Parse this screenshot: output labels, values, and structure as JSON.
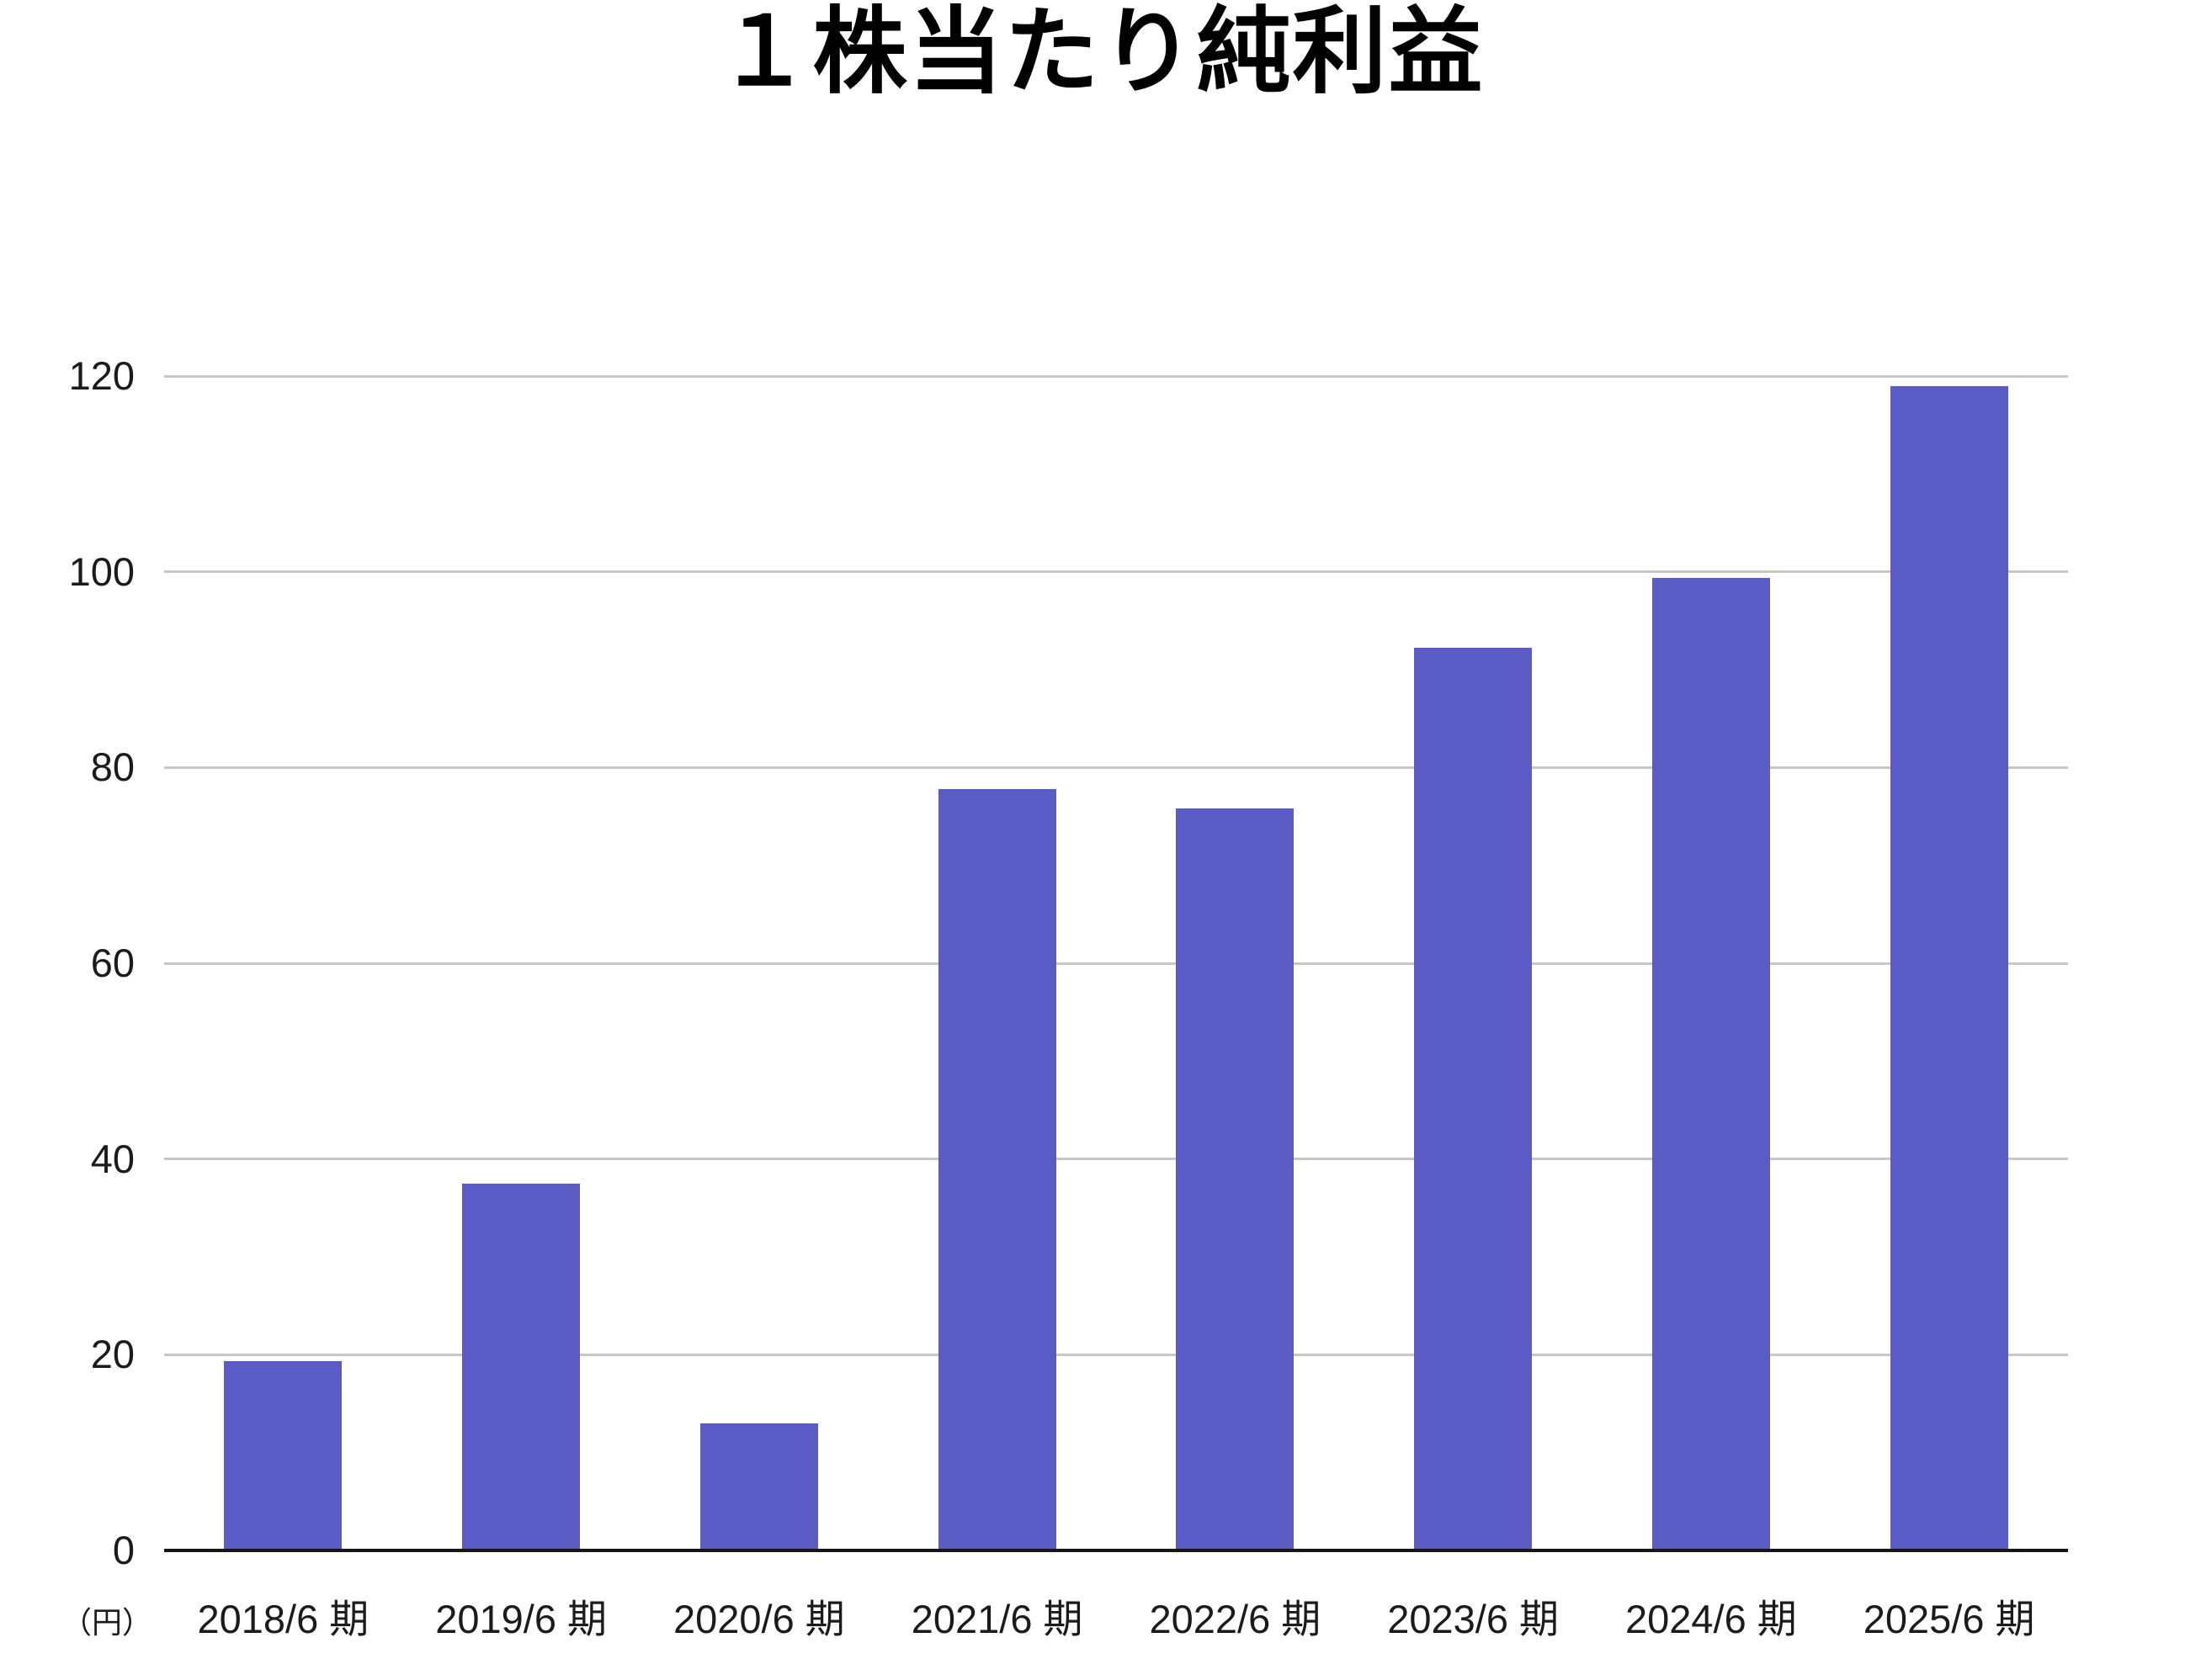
{
  "title": "１株当たり純利益",
  "y_axis_unit": "（円）",
  "colors": {
    "bar": "#5a5bc5",
    "gridline": "#c7c7c7",
    "axis_line": "#161616",
    "text": "#1b1b1b"
  },
  "chart_data": {
    "type": "bar",
    "title": "１株当たり純利益",
    "categories": [
      "2018/6 期",
      "2019/6 期",
      "2020/6 期",
      "2021/6 期",
      "2022/6 期",
      "2023/6 期",
      "2024/6 期",
      "2025/6 期"
    ],
    "values": [
      19.3,
      37.5,
      13.0,
      77.8,
      75.8,
      92.2,
      99.4,
      119.0
    ],
    "xlabel": "",
    "ylabel": "円",
    "ylim": [
      0,
      120
    ],
    "y_ticks": [
      0,
      20,
      40,
      60,
      80,
      100,
      120
    ],
    "grid": "horizontal",
    "legend": "none",
    "bar_color": "#5a5bc5"
  }
}
